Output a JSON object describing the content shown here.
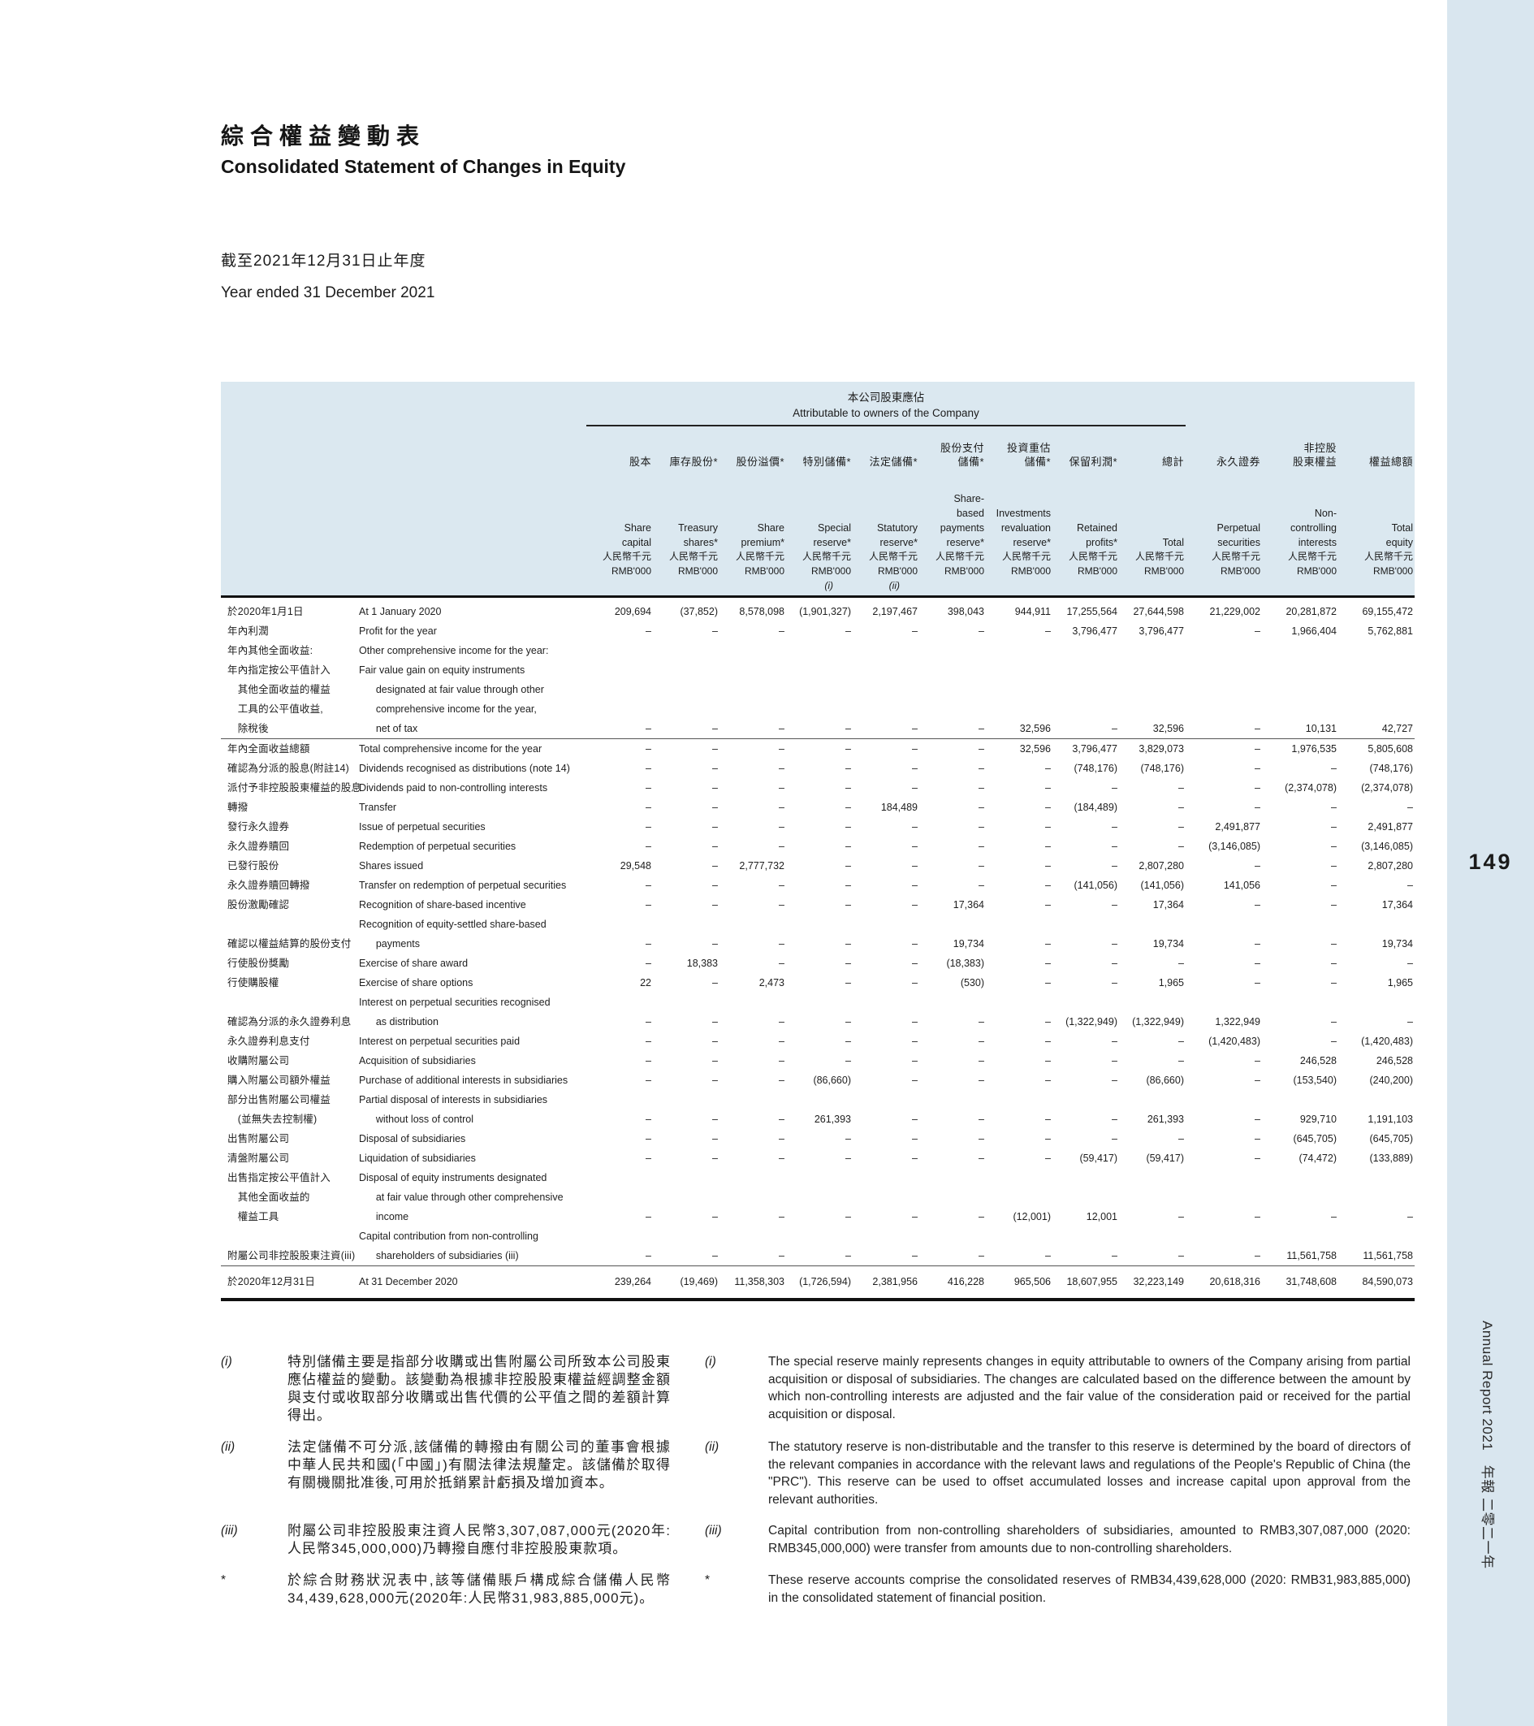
{
  "colors": {
    "band": "#d9e6ef",
    "header_bg": "#dbe8f0"
  },
  "page": {
    "title_zh": "綜合權益變動表",
    "title_en": "Consolidated Statement of Changes in Equity",
    "period_zh": "截至2021年12月31日止年度",
    "period_en": "Year ended 31 December 2021",
    "page_number": "149",
    "sidebar_text": "Annual Report 2021　年報 二零二一年"
  },
  "table": {
    "group_header": {
      "zh": "本公司股東應佔",
      "en": "Attributable to owners of the Company"
    },
    "unit_zh": "人民幣千元",
    "unit_en": "RMB'000",
    "columns": [
      {
        "zh": "股本",
        "en": "Share\ncapital",
        "marker": ""
      },
      {
        "zh": "庫存股份*",
        "en": "Treasury\nshares*",
        "marker": ""
      },
      {
        "zh": "股份溢價*",
        "en": "Share\npremium*",
        "marker": ""
      },
      {
        "zh": "特別儲備*",
        "en": "Special\nreserve*",
        "marker": "(i)"
      },
      {
        "zh": "法定儲備*",
        "en": "Statutory\nreserve*",
        "marker": "(ii)"
      },
      {
        "zh": "股份支付\n儲備*",
        "en": "Share-\nbased\npayments\nreserve*",
        "marker": ""
      },
      {
        "zh": "投資重估\n儲備*",
        "en": "Investments\nrevaluation\nreserve*",
        "marker": ""
      },
      {
        "zh": "保留利潤*",
        "en": "Retained\nprofits*",
        "marker": ""
      },
      {
        "zh": "總計",
        "en": "Total",
        "marker": ""
      },
      {
        "zh": "永久證券",
        "en": "Perpetual\nsecurities",
        "marker": ""
      },
      {
        "zh": "非控股\n股東權益",
        "en": "Non-\ncontrolling\ninterests",
        "marker": ""
      },
      {
        "zh": "權益總額",
        "en": "Total\nequity",
        "marker": ""
      }
    ],
    "rows": [
      {
        "type": "opening",
        "zh": "於2020年1月1日",
        "en": "At 1 January 2020",
        "values": [
          "209,694",
          "(37,852)",
          "8,578,098",
          "(1,901,327)",
          "2,197,467",
          "398,043",
          "944,911",
          "17,255,564",
          "27,644,598",
          "21,229,002",
          "20,281,872",
          "69,155,472"
        ]
      },
      {
        "type": "",
        "zh": "年內利潤",
        "en": "Profit for the year",
        "values": [
          "–",
          "–",
          "–",
          "–",
          "–",
          "–",
          "–",
          "3,796,477",
          "3,796,477",
          "–",
          "1,966,404",
          "5,762,881"
        ]
      },
      {
        "type": "",
        "zh": "年內其他全面收益:",
        "en": "Other comprehensive income for the year:",
        "values": []
      },
      {
        "type": "",
        "zh": "年內指定按公平值計入\n　其他全面收益的權益\n　工具的公平值收益,\n　除稅後",
        "en": "Fair value gain on equity instruments\n      designated at fair value through other\n      comprehensive income for the year,\n      net of tax",
        "values": [
          "–",
          "–",
          "–",
          "–",
          "–",
          "–",
          "32,596",
          "–",
          "32,596",
          "–",
          "10,131",
          "42,727"
        ]
      },
      {
        "type": "subtotal",
        "zh": "年內全面收益總額",
        "en": "Total comprehensive income for the year",
        "values": [
          "–",
          "–",
          "–",
          "–",
          "–",
          "–",
          "32,596",
          "3,796,477",
          "3,829,073",
          "–",
          "1,976,535",
          "5,805,608"
        ]
      },
      {
        "type": "",
        "zh": "確認為分派的股息(附註14)",
        "en": "Dividends recognised as distributions (note 14)",
        "values": [
          "–",
          "–",
          "–",
          "–",
          "–",
          "–",
          "–",
          "(748,176)",
          "(748,176)",
          "–",
          "–",
          "(748,176)"
        ]
      },
      {
        "type": "",
        "zh": "派付予非控股股東權益的股息",
        "en": "Dividends paid to non-controlling interests",
        "values": [
          "–",
          "–",
          "–",
          "–",
          "–",
          "–",
          "–",
          "–",
          "–",
          "–",
          "(2,374,078)",
          "(2,374,078)"
        ]
      },
      {
        "type": "",
        "zh": "轉撥",
        "en": "Transfer",
        "values": [
          "–",
          "–",
          "–",
          "–",
          "184,489",
          "–",
          "–",
          "(184,489)",
          "–",
          "–",
          "–",
          "–"
        ]
      },
      {
        "type": "",
        "zh": "發行永久證券",
        "en": "Issue of perpetual securities",
        "values": [
          "–",
          "–",
          "–",
          "–",
          "–",
          "–",
          "–",
          "–",
          "–",
          "2,491,877",
          "–",
          "2,491,877"
        ]
      },
      {
        "type": "",
        "zh": "永久證券贖回",
        "en": "Redemption of perpetual securities",
        "values": [
          "–",
          "–",
          "–",
          "–",
          "–",
          "–",
          "–",
          "–",
          "–",
          "(3,146,085)",
          "–",
          "(3,146,085)"
        ]
      },
      {
        "type": "",
        "zh": "已發行股份",
        "en": "Shares issued",
        "values": [
          "29,548",
          "–",
          "2,777,732",
          "–",
          "–",
          "–",
          "–",
          "–",
          "2,807,280",
          "–",
          "–",
          "2,807,280"
        ]
      },
      {
        "type": "",
        "zh": "永久證券贖回轉撥",
        "en": "Transfer on redemption of perpetual securities",
        "values": [
          "–",
          "–",
          "–",
          "–",
          "–",
          "–",
          "–",
          "(141,056)",
          "(141,056)",
          "141,056",
          "–",
          "–"
        ]
      },
      {
        "type": "",
        "zh": "股份激勵確認",
        "en": "Recognition of share-based incentive",
        "values": [
          "–",
          "–",
          "–",
          "–",
          "–",
          "17,364",
          "–",
          "–",
          "17,364",
          "–",
          "–",
          "17,364"
        ]
      },
      {
        "type": "",
        "zh": "確認以權益結算的股份支付",
        "en": "Recognition of equity-settled share-based\n      payments",
        "values": [
          "–",
          "–",
          "–",
          "–",
          "–",
          "19,734",
          "–",
          "–",
          "19,734",
          "–",
          "–",
          "19,734"
        ]
      },
      {
        "type": "",
        "zh": "行使股份獎勵",
        "en": "Exercise of share award",
        "values": [
          "–",
          "18,383",
          "–",
          "–",
          "–",
          "(18,383)",
          "–",
          "–",
          "–",
          "–",
          "–",
          "–"
        ]
      },
      {
        "type": "",
        "zh": "行使購股權",
        "en": "Exercise of share options",
        "values": [
          "22",
          "–",
          "2,473",
          "–",
          "–",
          "(530)",
          "–",
          "–",
          "1,965",
          "–",
          "–",
          "1,965"
        ]
      },
      {
        "type": "",
        "zh": "確認為分派的永久證券利息",
        "en": "Interest on perpetual securities recognised\n      as distribution",
        "values": [
          "–",
          "–",
          "–",
          "–",
          "–",
          "–",
          "–",
          "(1,322,949)",
          "(1,322,949)",
          "1,322,949",
          "–",
          "–"
        ]
      },
      {
        "type": "",
        "zh": "永久證券利息支付",
        "en": "Interest on perpetual securities paid",
        "values": [
          "–",
          "–",
          "–",
          "–",
          "–",
          "–",
          "–",
          "–",
          "–",
          "(1,420,483)",
          "–",
          "(1,420,483)"
        ]
      },
      {
        "type": "",
        "zh": "收購附屬公司",
        "en": "Acquisition of subsidiaries",
        "values": [
          "–",
          "–",
          "–",
          "–",
          "–",
          "–",
          "–",
          "–",
          "–",
          "–",
          "246,528",
          "246,528"
        ]
      },
      {
        "type": "",
        "zh": "購入附屬公司額外權益",
        "en": "Purchase of additional interests in subsidiaries",
        "values": [
          "–",
          "–",
          "–",
          "(86,660)",
          "–",
          "–",
          "–",
          "–",
          "(86,660)",
          "–",
          "(153,540)",
          "(240,200)"
        ]
      },
      {
        "type": "",
        "zh": "部分出售附屬公司權益\n　(並無失去控制權)",
        "en": "Partial disposal of interests in subsidiaries\n      without loss of control",
        "values": [
          "–",
          "–",
          "–",
          "261,393",
          "–",
          "–",
          "–",
          "–",
          "261,393",
          "–",
          "929,710",
          "1,191,103"
        ]
      },
      {
        "type": "",
        "zh": "出售附屬公司",
        "en": "Disposal of subsidiaries",
        "values": [
          "–",
          "–",
          "–",
          "–",
          "–",
          "–",
          "–",
          "–",
          "–",
          "–",
          "(645,705)",
          "(645,705)"
        ]
      },
      {
        "type": "",
        "zh": "清盤附屬公司",
        "en": "Liquidation of subsidiaries",
        "values": [
          "–",
          "–",
          "–",
          "–",
          "–",
          "–",
          "–",
          "(59,417)",
          "(59,417)",
          "–",
          "(74,472)",
          "(133,889)"
        ]
      },
      {
        "type": "",
        "zh": "出售指定按公平值計入\n　其他全面收益的\n　權益工具",
        "en": "Disposal of equity instruments designated\n      at fair value through other comprehensive\n      income",
        "values": [
          "–",
          "–",
          "–",
          "–",
          "–",
          "–",
          "(12,001)",
          "12,001",
          "–",
          "–",
          "–",
          "–"
        ]
      },
      {
        "type": "",
        "zh": "附屬公司非控股股東注資(iii)",
        "en": "Capital contribution from non-controlling\n      shareholders of subsidiaries (iii)",
        "values": [
          "–",
          "–",
          "–",
          "–",
          "–",
          "–",
          "–",
          "–",
          "–",
          "–",
          "11,561,758",
          "11,561,758"
        ]
      },
      {
        "type": "closing",
        "zh": "於2020年12月31日",
        "en": "At 31 December 2020",
        "values": [
          "239,264",
          "(19,469)",
          "11,358,303",
          "(1,726,594)",
          "2,381,956",
          "416,228",
          "965,506",
          "18,607,955",
          "32,223,149",
          "20,618,316",
          "31,748,608",
          "84,590,073"
        ]
      }
    ]
  },
  "footnotes": [
    {
      "marker": "(i)",
      "zh": "特別儲備主要是指部分收購或出售附屬公司所致本公司股東應佔權益的變動。該變動為根據非控股股東權益經調整金額與支付或收取部分收購或出售代價的公平值之間的差額計算得出。",
      "en": "The special reserve mainly represents changes in equity attributable to owners of the Company arising from partial acquisition or disposal of subsidiaries. The changes are calculated based on the difference between the amount by which non-controlling interests are adjusted and the fair value of the consideration paid or received for the partial acquisition or disposal."
    },
    {
      "marker": "(ii)",
      "zh": "法定儲備不可分派,該儲備的轉撥由有關公司的董事會根據中華人民共和國(「中國」)有關法律法規釐定。該儲備於取得有關機關批准後,可用於抵銷累計虧損及增加資本。",
      "en": "The statutory reserve is non-distributable and the transfer to this reserve is determined by the board of directors of the relevant companies in accordance with the relevant laws and regulations of the People's Republic of China (the \"PRC\"). This reserve can be used to offset accumulated losses and increase capital upon approval from the relevant authorities."
    },
    {
      "marker": "(iii)",
      "zh": "附屬公司非控股股東注資人民幣3,307,087,000元(2020年:人民幣345,000,000)乃轉撥自應付非控股股東款項。",
      "en": "Capital contribution from non-controlling shareholders of subsidiaries, amounted to RMB3,307,087,000 (2020: RMB345,000,000) were transfer from amounts due to non-controlling shareholders."
    },
    {
      "marker": "*",
      "zh": "於綜合財務狀況表中,該等儲備賬戶構成綜合儲備人民幣34,439,628,000元(2020年:人民幣31,983,885,000元)。",
      "en": "These reserve accounts comprise the consolidated reserves of RMB34,439,628,000 (2020: RMB31,983,885,000) in the consolidated statement of financial position."
    }
  ]
}
